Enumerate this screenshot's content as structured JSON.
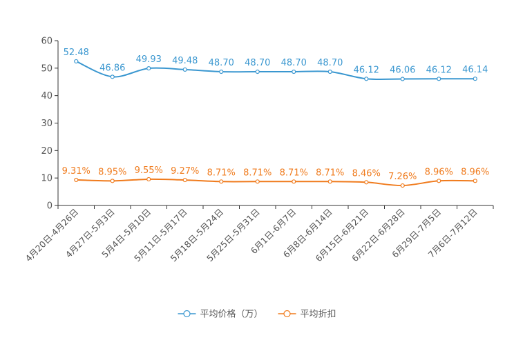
{
  "chart_data": {
    "type": "line",
    "categories": [
      "4月20日-4月26日",
      "4月27日-5月3日",
      "5月4日-5月10日",
      "5月11日-5月17日",
      "5月18日-5月24日",
      "5月25日-5月31日",
      "6月1日-6月7日",
      "6月8日-6月14日",
      "6月15日-6月21日",
      "6月22日-6月28日",
      "6月29日-7月5日",
      "7月6日-7月12日"
    ],
    "series": [
      {
        "name": "平均价格（万）",
        "color": "#3a97d0",
        "values": [
          52.48,
          46.86,
          49.93,
          49.48,
          48.7,
          48.7,
          48.7,
          48.7,
          46.12,
          46.06,
          46.12,
          46.14
        ],
        "labels": [
          "52.48",
          "46.86",
          "49.93",
          "49.48",
          "48.70",
          "48.70",
          "48.70",
          "48.70",
          "46.12",
          "46.06",
          "46.12",
          "46.14"
        ]
      },
      {
        "name": "平均折扣",
        "color": "#f07b1d",
        "values": [
          9.31,
          8.95,
          9.55,
          9.27,
          8.71,
          8.71,
          8.71,
          8.71,
          8.46,
          7.26,
          8.96,
          8.96
        ],
        "labels": [
          "9.31%",
          "8.95%",
          "9.55%",
          "9.27%",
          "8.71%",
          "8.71%",
          "8.71%",
          "8.71%",
          "8.46%",
          "7.26%",
          "8.96%",
          "8.96%"
        ]
      }
    ],
    "yticks": [
      0,
      10,
      20,
      30,
      40,
      50,
      60
    ],
    "ylim": [
      0,
      60
    ],
    "title": "",
    "xlabel": "",
    "ylabel": "",
    "legend_position": "bottom-center"
  }
}
